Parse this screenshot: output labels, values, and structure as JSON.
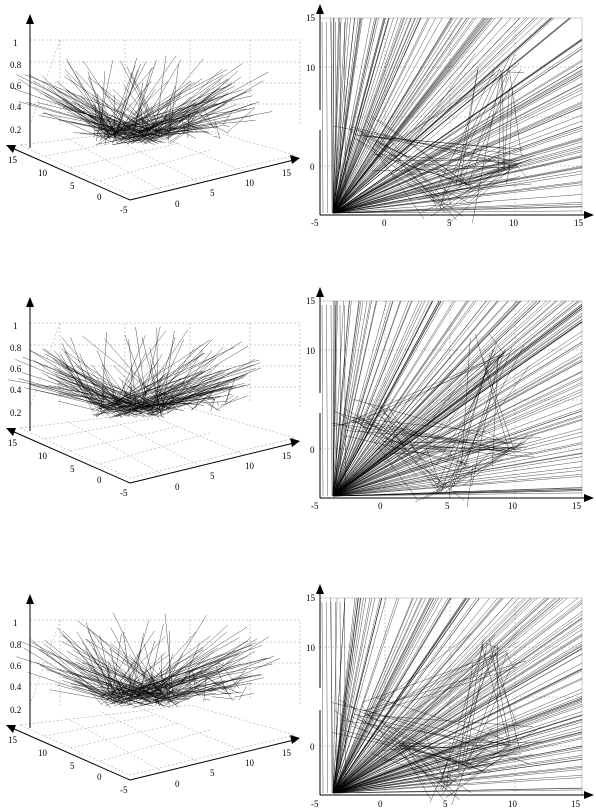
{
  "figure": {
    "rows": [
      {
        "id": "row-1"
      },
      {
        "id": "row-2"
      },
      {
        "id": "row-3"
      }
    ],
    "plot3d": {
      "z_ticks": [
        "0.2",
        "0.4",
        "0.6",
        "0.8",
        "1"
      ],
      "left_axis_ticks": [
        "15",
        "10",
        "5",
        "0",
        "-5"
      ],
      "right_axis_ticks": [
        "0",
        "5",
        "10",
        "15"
      ]
    },
    "plot2d": {
      "x_ticks": [
        "-5",
        "0",
        "5",
        "10",
        "15"
      ],
      "y_ticks": [
        "0",
        "10",
        "15"
      ],
      "xlim": [
        -5,
        15
      ],
      "ylim": [
        -5,
        15
      ]
    }
  }
}
